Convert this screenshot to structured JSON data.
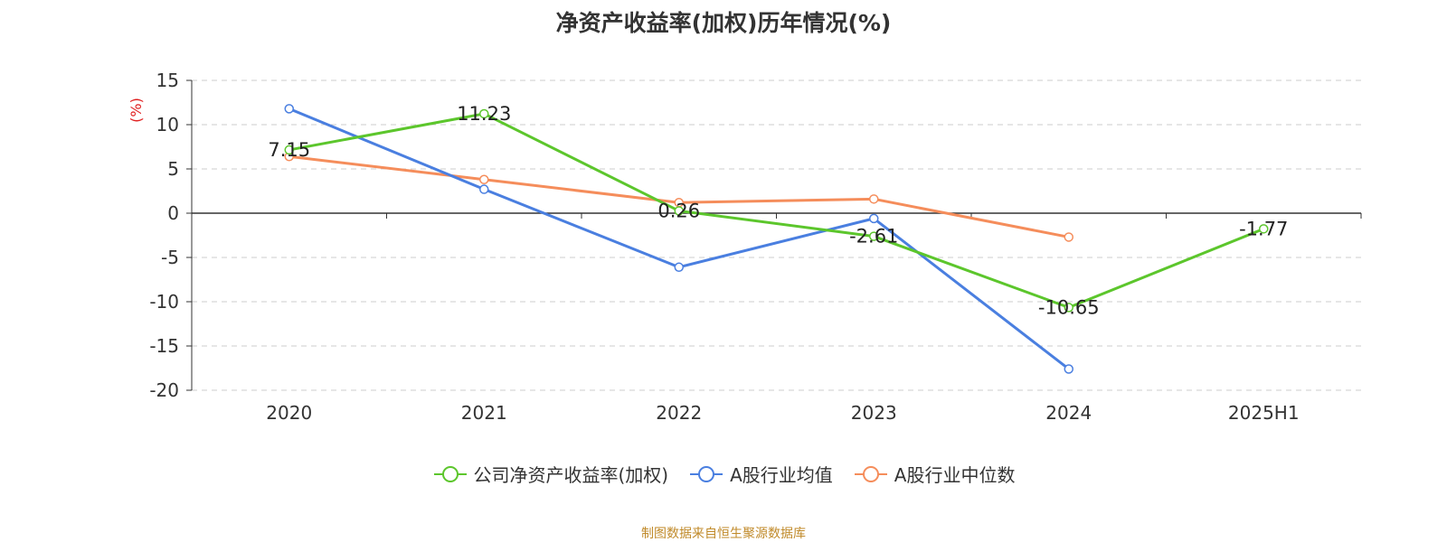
{
  "chart_data": {
    "type": "line",
    "title": "净资产收益率(加权)历年情况(%)",
    "ylabel": "(%)",
    "xlabel": "",
    "categories": [
      "2020",
      "2021",
      "2022",
      "2023",
      "2024",
      "2025H1"
    ],
    "ylim": [
      -20,
      15
    ],
    "yticks": [
      15,
      10,
      5,
      0,
      -5,
      -10,
      -15,
      -20
    ],
    "grid": true,
    "legend_position": "bottom",
    "series": [
      {
        "name": "公司净资产收益率(加权)",
        "color": "#5cc62c",
        "values": [
          7.15,
          11.23,
          0.26,
          -2.61,
          -10.65,
          -1.77
        ],
        "labels": [
          "7.15",
          "11.23",
          "0.26",
          "-2.61",
          "-10.65",
          "-1.77"
        ]
      },
      {
        "name": "A股行业均值",
        "color": "#4a7fe0",
        "values": [
          11.8,
          2.7,
          -6.1,
          -0.6,
          -17.6,
          null
        ]
      },
      {
        "name": "A股行业中位数",
        "color": "#f58d5b",
        "values": [
          6.4,
          3.8,
          1.2,
          1.6,
          -2.7,
          null
        ]
      }
    ]
  },
  "source_note": "制图数据来自恒生聚源数据库"
}
